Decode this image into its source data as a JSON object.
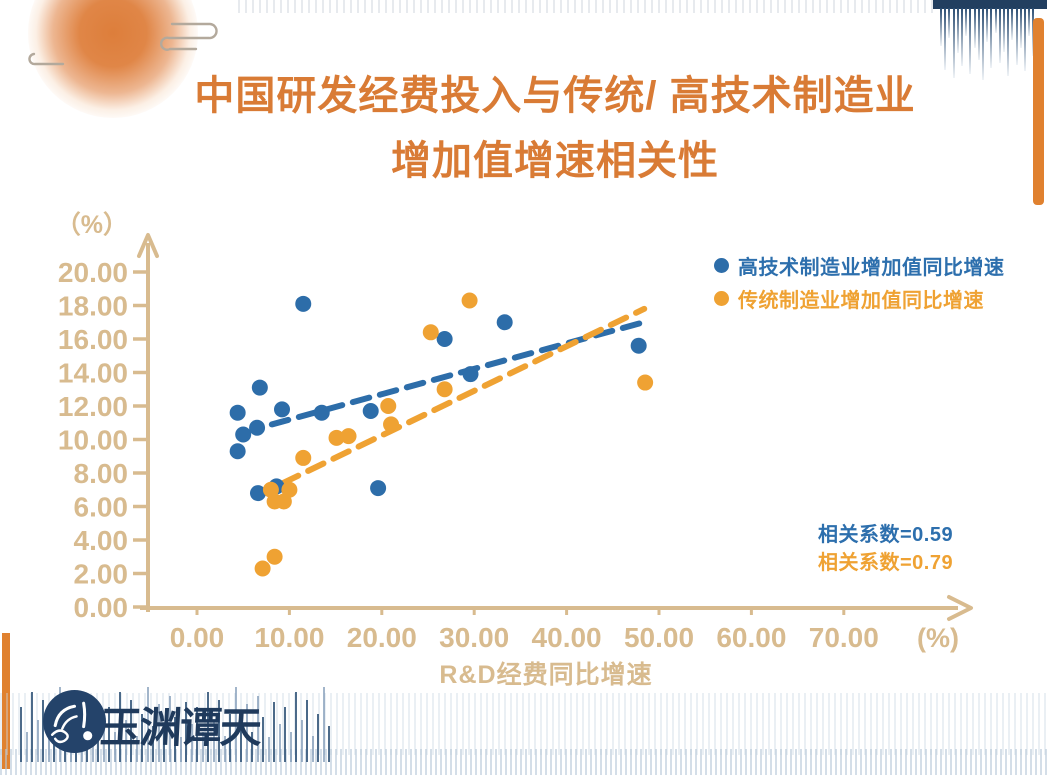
{
  "title": {
    "line1": "中国研发经费投入与传统/ 高技术制造业",
    "line2": "增加值增速相关性"
  },
  "logo": {
    "name": "玉渊谭天"
  },
  "colors": {
    "title_orange": "#d97b35",
    "axis_tan": "#d8bb8f",
    "series_blue": "#2d6da9",
    "series_orange": "#efa233",
    "navy": "#24436a",
    "accent_orange": "#e0812f"
  },
  "chart_data": {
    "type": "scatter",
    "title": "中国研发经费投入与传统/高技术制造业增加值增速相关性",
    "xlabel": "R&D经费同比增速",
    "ylabel": "",
    "x_unit": "(%)",
    "y_unit": "（%）",
    "xlim": [
      0,
      70
    ],
    "ylim": [
      0,
      20
    ],
    "grid": false,
    "legend_position": "top-right",
    "x_ticks": [
      "0.00",
      "10.00",
      "20.00",
      "30.00",
      "40.00",
      "50.00",
      "60.00",
      "70.00"
    ],
    "y_ticks": [
      "0.00",
      "2.00",
      "4.00",
      "6.00",
      "8.00",
      "10.00",
      "12.00",
      "14.00",
      "16.00",
      "18.00",
      "20.00"
    ],
    "series": [
      {
        "name": "高技术制造业增加值同比增速",
        "color": "#2d6da9",
        "correlation": 0.59,
        "correlation_label": "相关系数=0.59",
        "points": [
          [
            4.4,
            11.6
          ],
          [
            4.4,
            9.3
          ],
          [
            5.0,
            10.3
          ],
          [
            6.5,
            10.7
          ],
          [
            6.6,
            6.8
          ],
          [
            6.8,
            13.1
          ],
          [
            8.6,
            7.2
          ],
          [
            9.2,
            11.8
          ],
          [
            11.5,
            18.1
          ],
          [
            13.5,
            11.6
          ],
          [
            18.8,
            11.7
          ],
          [
            19.6,
            7.1
          ],
          [
            26.8,
            16.0
          ],
          [
            29.6,
            13.9
          ],
          [
            33.3,
            17.0
          ],
          [
            47.8,
            15.6
          ]
        ],
        "trendline": {
          "style": "dashed",
          "x1": 8.1,
          "y1": 10.9,
          "x2": 49.0,
          "y2": 17.1
        }
      },
      {
        "name": "传统制造业增加值同比增速",
        "color": "#efa233",
        "correlation": 0.79,
        "correlation_label": "相关系数=0.79",
        "points": [
          [
            7.1,
            2.3
          ],
          [
            8.0,
            7.0
          ],
          [
            8.4,
            6.3
          ],
          [
            8.4,
            3.0
          ],
          [
            9.4,
            6.3
          ],
          [
            10.0,
            7.0
          ],
          [
            11.5,
            8.9
          ],
          [
            15.1,
            10.1
          ],
          [
            16.4,
            10.2
          ],
          [
            20.7,
            12.0
          ],
          [
            21.0,
            10.9
          ],
          [
            25.3,
            16.4
          ],
          [
            26.8,
            13.0
          ],
          [
            29.5,
            18.3
          ],
          [
            48.5,
            13.4
          ]
        ],
        "trendline": {
          "style": "dashed",
          "x1": 9.3,
          "y1": 7.4,
          "x2": 48.4,
          "y2": 17.8
        }
      }
    ]
  }
}
